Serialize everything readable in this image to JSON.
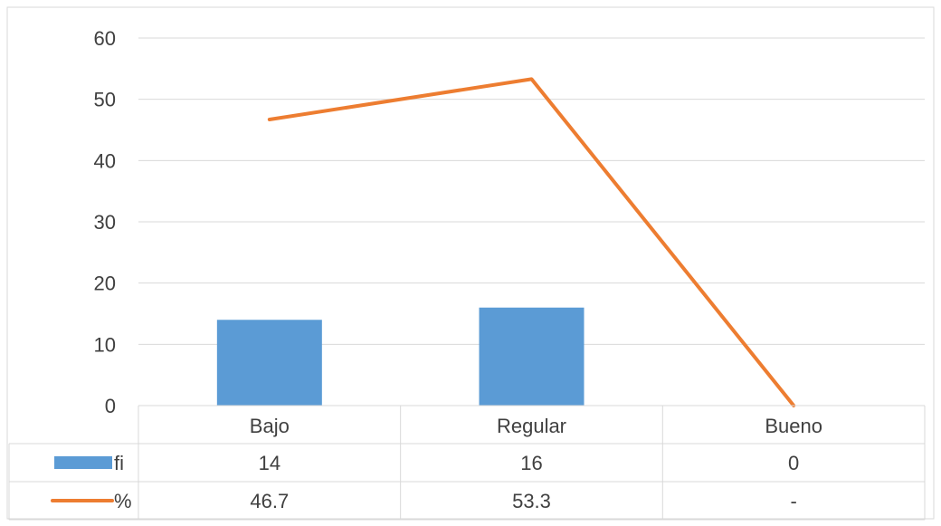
{
  "chart_data": {
    "type": "bar",
    "categories": [
      "Bajo",
      "Regular",
      "Bueno"
    ],
    "ylim": [
      0,
      60
    ],
    "yticks": [
      0,
      10,
      20,
      30,
      40,
      50,
      60
    ],
    "grid": true,
    "legend_placement": "data-table-below",
    "series": [
      {
        "name": "fi",
        "type": "bar",
        "values": [
          14,
          16,
          0
        ],
        "table_labels": [
          "14",
          "16",
          "0"
        ],
        "color": "#5b9bd5"
      },
      {
        "name": "%",
        "type": "line",
        "values": [
          46.7,
          53.3,
          0
        ],
        "table_labels": [
          "46.7",
          "53.3",
          "-"
        ],
        "color": "#ed7d31"
      }
    ]
  },
  "colors": {
    "border": "#d9d9d9",
    "grid": "#d9d9d9",
    "text": "#404040"
  }
}
